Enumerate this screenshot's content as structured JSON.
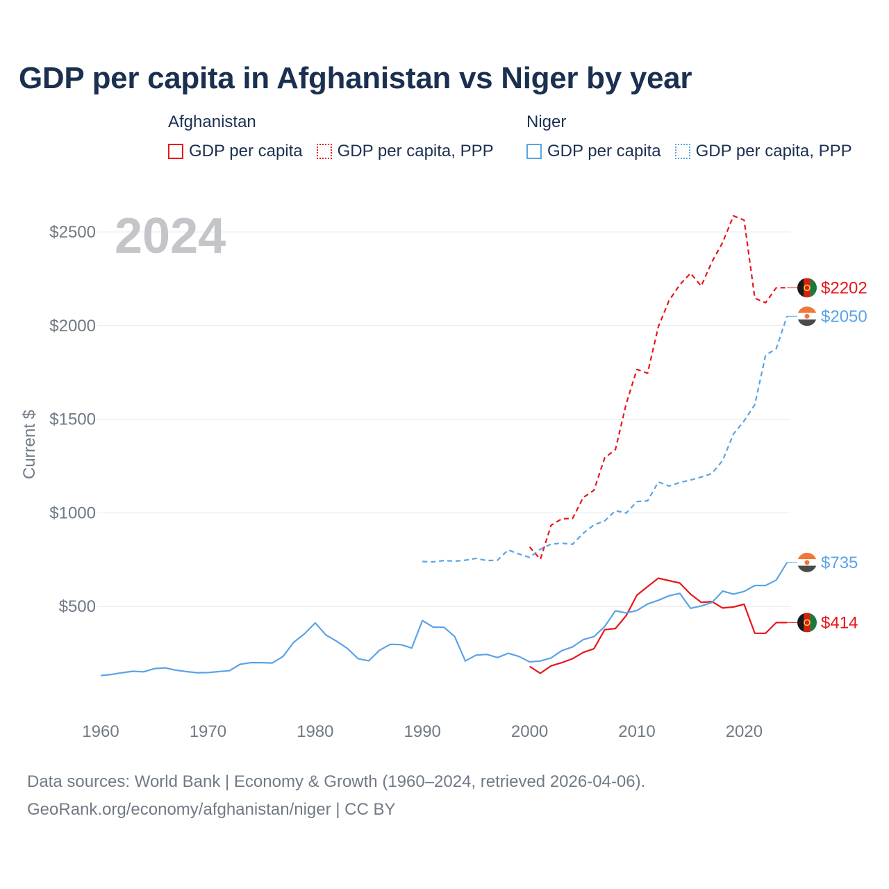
{
  "title": "GDP per capita in Afghanistan vs Niger by year",
  "legend": {
    "groups": [
      {
        "country": "Afghanistan",
        "color": "#e8161b",
        "items": [
          {
            "label": "GDP per capita",
            "style": "solid"
          },
          {
            "label": "GDP per capita, PPP",
            "style": "dotted"
          }
        ]
      },
      {
        "country": "Niger",
        "color": "#5aa3e6",
        "items": [
          {
            "label": "GDP per capita",
            "style": "solid"
          },
          {
            "label": "GDP per capita, PPP",
            "style": "dotted"
          }
        ]
      }
    ]
  },
  "chart_data": {
    "type": "line",
    "year_label": "2024",
    "ylabel": "Current $",
    "xlim": [
      1959,
      2024
    ],
    "ylim": [
      0,
      2700
    ],
    "x_ticks": [
      1960,
      1970,
      1980,
      1990,
      2000,
      2010,
      2020
    ],
    "x_tick_labels": [
      "1960",
      "1970",
      "1980",
      "1990",
      "2000",
      "2010",
      "2020"
    ],
    "y_ticks": [
      500,
      1000,
      1500,
      2000,
      2500
    ],
    "y_tick_labels": [
      "$500",
      "$1000",
      "$1500",
      "$2000",
      "$2500"
    ],
    "series": [
      {
        "name": "Afghanistan GDP per capita",
        "country": "Afghanistan",
        "color": "#e8161b",
        "dash": "solid",
        "end_label": "$414",
        "x": [
          2000,
          2001,
          2002,
          2003,
          2004,
          2005,
          2006,
          2007,
          2008,
          2009,
          2010,
          2011,
          2012,
          2013,
          2014,
          2015,
          2016,
          2017,
          2018,
          2019,
          2020,
          2021,
          2022,
          2023,
          2024
        ],
        "values": [
          180,
          143,
          183,
          200,
          221,
          255,
          274,
          376,
          382,
          451,
          560,
          606,
          651,
          638,
          625,
          566,
          522,
          526,
          492,
          497,
          512,
          357,
          357,
          414,
          414
        ]
      },
      {
        "name": "Afghanistan GDP per capita, PPP",
        "country": "Afghanistan",
        "color": "#e8161b",
        "dash": "dashed",
        "end_label": "$2202",
        "x": [
          2000,
          2001,
          2002,
          2003,
          2004,
          2005,
          2006,
          2007,
          2008,
          2009,
          2010,
          2011,
          2012,
          2013,
          2014,
          2015,
          2016,
          2017,
          2018,
          2019,
          2020,
          2021,
          2022,
          2023,
          2024
        ],
        "values": [
          818,
          752,
          934,
          968,
          970,
          1082,
          1121,
          1294,
          1338,
          1582,
          1766,
          1746,
          1994,
          2134,
          2218,
          2280,
          2211,
          2341,
          2444,
          2586,
          2563,
          2146,
          2122,
          2202,
          2202
        ]
      },
      {
        "name": "Niger GDP per capita",
        "country": "Niger",
        "color": "#5aa3e6",
        "dash": "solid",
        "end_label": "$735",
        "x": [
          1960,
          1961,
          1962,
          1963,
          1964,
          1965,
          1966,
          1967,
          1968,
          1969,
          1970,
          1971,
          1972,
          1973,
          1974,
          1975,
          1976,
          1977,
          1978,
          1979,
          1980,
          1981,
          1982,
          1983,
          1984,
          1985,
          1986,
          1987,
          1988,
          1989,
          1990,
          1991,
          1992,
          1993,
          1994,
          1995,
          1996,
          1997,
          1998,
          1999,
          2000,
          2001,
          2002,
          2003,
          2004,
          2005,
          2006,
          2007,
          2008,
          2009,
          2010,
          2011,
          2012,
          2013,
          2014,
          2015,
          2016,
          2017,
          2018,
          2019,
          2020,
          2021,
          2022,
          2023,
          2024
        ],
        "values": [
          131,
          137,
          146,
          154,
          151,
          168,
          172,
          160,
          152,
          146,
          147,
          152,
          157,
          191,
          200,
          200,
          198,
          233,
          309,
          354,
          412,
          348,
          314,
          276,
          221,
          210,
          266,
          298,
          296,
          278,
          425,
          390,
          389,
          340,
          209,
          240,
          244,
          227,
          250,
          233,
          204,
          209,
          225,
          264,
          284,
          323,
          339,
          393,
          477,
          465,
          478,
          513,
          533,
          557,
          570,
          490,
          503,
          521,
          582,
          566,
          580,
          612,
          612,
          641,
          735
        ]
      },
      {
        "name": "Niger GDP per capita, PPP",
        "country": "Niger",
        "color": "#5aa3e6",
        "dash": "dashed",
        "end_label": "$2050",
        "x": [
          1990,
          1991,
          1992,
          1993,
          1994,
          1995,
          1996,
          1997,
          1998,
          1999,
          2000,
          2001,
          2002,
          2003,
          2004,
          2005,
          2006,
          2007,
          2008,
          2009,
          2010,
          2011,
          2012,
          2013,
          2014,
          2015,
          2016,
          2017,
          2018,
          2019,
          2020,
          2021,
          2022,
          2023,
          2024
        ],
        "values": [
          740,
          738,
          745,
          742,
          747,
          757,
          745,
          747,
          802,
          780,
          762,
          806,
          833,
          838,
          832,
          891,
          936,
          957,
          1012,
          999,
          1060,
          1064,
          1165,
          1143,
          1162,
          1175,
          1191,
          1210,
          1280,
          1421,
          1491,
          1578,
          1842,
          1877,
          2050
        ]
      }
    ],
    "end_markers": [
      {
        "value": 2202,
        "label": "$2202",
        "color": "#e8161b",
        "flag": "afghanistan-flag"
      },
      {
        "value": 2050,
        "label": "$2050",
        "color": "#5aa3e6",
        "flag": "niger-flag"
      },
      {
        "value": 735,
        "label": "$735",
        "color": "#5aa3e6",
        "flag": "niger-flag"
      },
      {
        "value": 414,
        "label": "$414",
        "color": "#e8161b",
        "flag": "afghanistan-flag"
      }
    ]
  },
  "footer": {
    "line1": "Data sources: World Bank | Economy & Growth (1960–2024, retrieved 2026-04-06).",
    "line2": "GeoRank.org/economy/afghanistan/niger | CC BY"
  }
}
